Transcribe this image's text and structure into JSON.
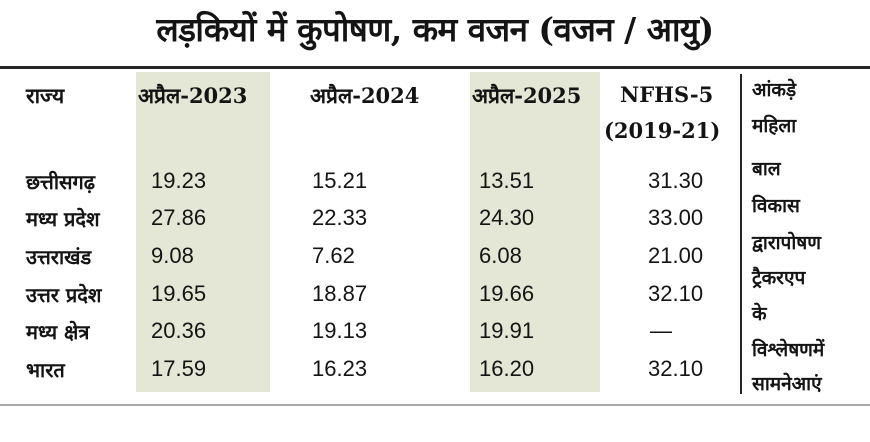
{
  "title": "लड़कियों में कुपोषण, कम वजन (वजन / आयु)",
  "headers": {
    "state": "राज्य",
    "apr2023": "अप्रैल-2023",
    "apr2024": "अप्रैल-2024",
    "apr2025": "अप्रैल-2025",
    "nfhs_line1": "NFHS-5",
    "nfhs_line2": "(2019-21)"
  },
  "rows": [
    {
      "state": "छत्तीसगढ़",
      "apr2023": "19.23",
      "apr2024": "15.21",
      "apr2025": "13.51",
      "nfhs5": "31.30"
    },
    {
      "state": "मध्य प्रदेश",
      "apr2023": "27.86",
      "apr2024": "22.33",
      "apr2025": "24.30",
      "nfhs5": "33.00"
    },
    {
      "state": "उत्तराखंड",
      "apr2023": "9.08",
      "apr2024": "7.62",
      "apr2025": "6.08",
      "nfhs5": "21.00"
    },
    {
      "state": "उत्तर प्रदेश",
      "apr2023": "19.65",
      "apr2024": "18.87",
      "apr2025": "19.66",
      "nfhs5": "32.10"
    },
    {
      "state": "मध्य क्षेत्र",
      "apr2023": "20.36",
      "apr2024": "19.13",
      "apr2025": "19.91",
      "nfhs5": "—"
    },
    {
      "state": "भारत",
      "apr2023": "17.59",
      "apr2024": "16.23",
      "apr2025": "16.20",
      "nfhs5": "32.10"
    }
  ],
  "source_note": [
    "आंकड़े",
    "महिला",
    "बाल",
    "विकास",
    "द्वारापोषण",
    "ट्रैकरएप",
    "के",
    "विश्लेषणमें",
    "सामनेआएं"
  ]
}
